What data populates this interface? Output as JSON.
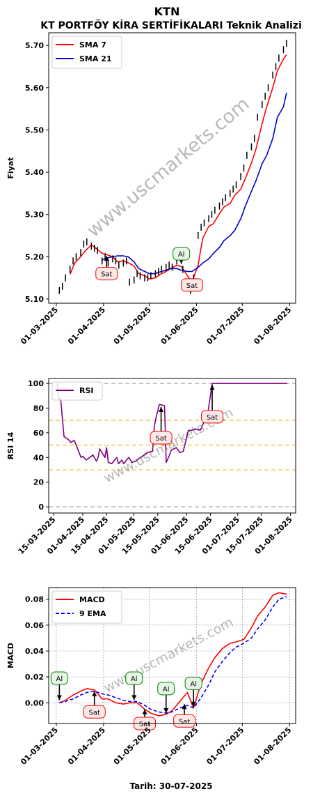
{
  "header": {
    "title": "KTN",
    "subtitle": "KT PORTFÖY KİRA SERTİFİKALARI Teknik Analizi"
  },
  "watermark": "www.uscmarkets.com",
  "footer": {
    "date_label": "Tarih: 30-07-2025"
  },
  "colors": {
    "price": "#000000",
    "sma7": "#ff0000",
    "sma21": "#0000cc",
    "rsi": "#800080",
    "macd": "#ff0000",
    "ema9": "#0000ff",
    "band_gray": "#999999",
    "band_orange": "#f0b000",
    "buy_border": "#008000",
    "buy_fill": "#e6f5e6",
    "sell_border": "#ff0000",
    "sell_fill": "#fde8e8"
  },
  "chart_data": [
    {
      "id": "price",
      "type": "line",
      "ylabel": "Fiyat",
      "ylim": [
        5.09,
        5.73
      ],
      "yticks": [
        5.1,
        5.2,
        5.3,
        5.4,
        5.5,
        5.6,
        5.7
      ],
      "ytick_labels": [
        "5.10",
        "5.20",
        "5.30",
        "5.40",
        "5.50",
        "5.60",
        "5.70"
      ],
      "xlim": [
        "2025-02-24",
        "2025-08-05"
      ],
      "xticks": [
        "2025-03-01",
        "2025-04-01",
        "2025-05-01",
        "2025-06-01",
        "2025-07-01",
        "2025-08-01"
      ],
      "xtick_labels": [
        "01-03-2025",
        "01-04-2025",
        "01-05-2025",
        "01-06-2025",
        "01-07-2025",
        "01-08-2025"
      ],
      "legend": {
        "position": "top-left",
        "entries": [
          "SMA 7",
          "SMA 21"
        ]
      },
      "series": [
        {
          "name": "SMA 7",
          "x": [
            "2025-03-10",
            "2025-03-13",
            "2025-03-17",
            "2025-03-20",
            "2025-03-24",
            "2025-03-27",
            "2025-03-31",
            "2025-04-03",
            "2025-04-07",
            "2025-04-10",
            "2025-04-14",
            "2025-04-17",
            "2025-04-21",
            "2025-04-24",
            "2025-04-28",
            "2025-05-01",
            "2025-05-05",
            "2025-05-08",
            "2025-05-12",
            "2025-05-15",
            "2025-05-19",
            "2025-05-22",
            "2025-05-26",
            "2025-05-29",
            "2025-06-02",
            "2025-06-05",
            "2025-06-09",
            "2025-06-12",
            "2025-06-16",
            "2025-06-19",
            "2025-06-23",
            "2025-06-26",
            "2025-06-30",
            "2025-07-03",
            "2025-07-07",
            "2025-07-10",
            "2025-07-14",
            "2025-07-17",
            "2025-07-21",
            "2025-07-24",
            "2025-07-28",
            "2025-07-30"
          ],
          "values": [
            5.158,
            5.185,
            5.2,
            5.214,
            5.228,
            5.22,
            5.208,
            5.205,
            5.2,
            5.188,
            5.19,
            5.186,
            5.178,
            5.16,
            5.155,
            5.147,
            5.15,
            5.158,
            5.165,
            5.172,
            5.18,
            5.177,
            5.155,
            5.14,
            5.18,
            5.243,
            5.272,
            5.278,
            5.302,
            5.318,
            5.326,
            5.345,
            5.36,
            5.385,
            5.422,
            5.455,
            5.515,
            5.555,
            5.6,
            5.64,
            5.668,
            5.678
          ]
        },
        {
          "name": "SMA 21",
          "x": [
            "2025-03-31",
            "2025-04-03",
            "2025-04-07",
            "2025-04-10",
            "2025-04-14",
            "2025-04-17",
            "2025-04-21",
            "2025-04-24",
            "2025-04-28",
            "2025-05-01",
            "2025-05-05",
            "2025-05-08",
            "2025-05-12",
            "2025-05-15",
            "2025-05-19",
            "2025-05-22",
            "2025-05-26",
            "2025-05-29",
            "2025-06-02",
            "2025-06-05",
            "2025-06-09",
            "2025-06-12",
            "2025-06-16",
            "2025-06-19",
            "2025-06-23",
            "2025-06-26",
            "2025-06-30",
            "2025-07-03",
            "2025-07-07",
            "2025-07-10",
            "2025-07-14",
            "2025-07-17",
            "2025-07-21",
            "2025-07-24",
            "2025-07-28",
            "2025-07-30"
          ],
          "values": [
            5.192,
            5.197,
            5.2,
            5.202,
            5.202,
            5.2,
            5.188,
            5.172,
            5.165,
            5.16,
            5.16,
            5.164,
            5.168,
            5.172,
            5.172,
            5.168,
            5.165,
            5.165,
            5.175,
            5.185,
            5.195,
            5.208,
            5.222,
            5.238,
            5.25,
            5.262,
            5.29,
            5.32,
            5.355,
            5.38,
            5.42,
            5.44,
            5.48,
            5.53,
            5.555,
            5.588
          ]
        },
        {
          "name": "Fiyat",
          "x": [
            "2025-03-03",
            "2025-03-05",
            "2025-03-07",
            "2025-03-10",
            "2025-03-12",
            "2025-03-14",
            "2025-03-17",
            "2025-03-19",
            "2025-03-21",
            "2025-03-24",
            "2025-03-26",
            "2025-03-28",
            "2025-03-31",
            "2025-04-02",
            "2025-04-04",
            "2025-04-07",
            "2025-04-09",
            "2025-04-11",
            "2025-04-14",
            "2025-04-16",
            "2025-04-18",
            "2025-04-21",
            "2025-04-23",
            "2025-04-25",
            "2025-04-28",
            "2025-04-30",
            "2025-05-02",
            "2025-05-05",
            "2025-05-07",
            "2025-05-09",
            "2025-05-12",
            "2025-05-14",
            "2025-05-16",
            "2025-05-19",
            "2025-05-21",
            "2025-05-23",
            "2025-05-26",
            "2025-05-28",
            "2025-05-30",
            "2025-06-02",
            "2025-06-04",
            "2025-06-06",
            "2025-06-09",
            "2025-06-11",
            "2025-06-13",
            "2025-06-16",
            "2025-06-18",
            "2025-06-20",
            "2025-06-23",
            "2025-06-25",
            "2025-06-27",
            "2025-06-30",
            "2025-07-02",
            "2025-07-04",
            "2025-07-07",
            "2025-07-09",
            "2025-07-11",
            "2025-07-14",
            "2025-07-16",
            "2025-07-18",
            "2025-07-21",
            "2025-07-23",
            "2025-07-25",
            "2025-07-28",
            "2025-07-30"
          ],
          "values": [
            5.12,
            5.13,
            5.15,
            5.17,
            5.19,
            5.2,
            5.21,
            5.23,
            5.235,
            5.225,
            5.22,
            5.215,
            5.19,
            5.2,
            5.185,
            5.195,
            5.19,
            5.18,
            5.185,
            5.19,
            5.14,
            5.145,
            5.16,
            5.155,
            5.15,
            5.15,
            5.155,
            5.16,
            5.165,
            5.17,
            5.175,
            5.18,
            5.175,
            5.19,
            5.2,
            5.17,
            5.13,
            5.12,
            5.15,
            5.25,
            5.27,
            5.28,
            5.29,
            5.3,
            5.31,
            5.32,
            5.33,
            5.34,
            5.35,
            5.36,
            5.37,
            5.39,
            5.41,
            5.44,
            5.46,
            5.48,
            5.53,
            5.56,
            5.58,
            5.6,
            5.63,
            5.65,
            5.67,
            5.69,
            5.705
          ]
        }
      ],
      "annotations": [
        {
          "text": "Sat",
          "kind": "sell",
          "date": "2025-04-03",
          "value": 5.205,
          "label_value": 5.16
        },
        {
          "text": "Al",
          "kind": "buy",
          "date": "2025-05-22",
          "value": 5.18,
          "label_value": 5.207
        },
        {
          "text": "Sat",
          "kind": "sell",
          "date": "2025-05-29",
          "value": 5.152,
          "label_value": 5.133
        }
      ]
    },
    {
      "id": "rsi",
      "type": "line",
      "ylabel": "RSI 14",
      "ylim": [
        -5,
        104
      ],
      "yticks": [
        0,
        20,
        40,
        60,
        80,
        100
      ],
      "ytick_labels": [
        "0",
        "20",
        "40",
        "60",
        "80",
        "100"
      ],
      "hlines": [
        {
          "value": 0,
          "style": "gray"
        },
        {
          "value": 30,
          "style": "orange"
        },
        {
          "value": 50,
          "style": "orange"
        },
        {
          "value": 70,
          "style": "orange"
        },
        {
          "value": 100,
          "style": "gray"
        }
      ],
      "xlim": [
        "2025-03-12",
        "2025-08-04"
      ],
      "xticks": [
        "2025-03-15",
        "2025-04-01",
        "2025-04-15",
        "2025-05-01",
        "2025-05-15",
        "2025-06-01",
        "2025-06-15",
        "2025-07-01",
        "2025-07-15",
        "2025-08-01"
      ],
      "xtick_labels": [
        "15-03-2025",
        "01-04-2025",
        "15-04-2025",
        "01-05-2025",
        "15-05-2025",
        "01-06-2025",
        "15-06-2025",
        "01-07-2025",
        "15-07-2025",
        "01-08-2025"
      ],
      "legend": {
        "position": "top-left",
        "entries": [
          "RSI"
        ]
      },
      "series": [
        {
          "name": "RSI",
          "x": [
            "2025-03-17",
            "2025-03-18",
            "2025-03-19",
            "2025-03-21",
            "2025-03-24",
            "2025-03-25",
            "2025-03-27",
            "2025-03-31",
            "2025-04-01",
            "2025-04-03",
            "2025-04-07",
            "2025-04-09",
            "2025-04-10",
            "2025-04-11",
            "2025-04-14",
            "2025-04-15",
            "2025-04-16",
            "2025-04-18",
            "2025-04-21",
            "2025-04-22",
            "2025-04-24",
            "2025-04-25",
            "2025-04-28",
            "2025-04-30",
            "2025-05-02",
            "2025-05-05",
            "2025-05-07",
            "2025-05-09",
            "2025-05-12",
            "2025-05-13",
            "2025-05-14",
            "2025-05-16",
            "2025-05-19",
            "2025-05-20",
            "2025-05-22",
            "2025-05-23",
            "2025-05-26",
            "2025-05-28",
            "2025-05-30",
            "2025-06-02",
            "2025-06-04",
            "2025-06-06",
            "2025-06-09",
            "2025-06-11",
            "2025-06-13",
            "2025-06-16",
            "2025-06-20",
            "2025-06-27",
            "2025-07-04",
            "2025-07-11",
            "2025-07-18",
            "2025-07-25",
            "2025-07-30"
          ],
          "values": [
            100,
            87,
            88,
            57,
            54,
            52,
            54,
            40,
            41,
            38,
            42,
            37,
            40,
            47,
            40,
            48,
            36,
            35,
            40,
            35,
            38,
            35,
            40,
            36,
            37,
            40,
            42,
            44,
            45,
            65,
            72,
            83,
            82,
            36,
            42,
            46,
            48,
            44,
            45,
            62,
            62,
            63,
            62,
            68,
            72,
            100,
            100,
            100,
            100,
            100,
            100,
            100,
            100
          ]
        }
      ],
      "annotations": [
        {
          "text": "Sat",
          "kind": "sell",
          "date": "2025-05-17",
          "value": 82,
          "label_value": 56
        },
        {
          "text": "Sat",
          "kind": "sell",
          "date": "2025-06-16",
          "value": 100,
          "label_value": 73
        }
      ]
    },
    {
      "id": "macd",
      "type": "line",
      "ylabel": "MACD",
      "xlabel": "Tarih: 30-07-2025",
      "ylim": [
        -0.016,
        0.089
      ],
      "yticks": [
        0.0,
        0.02,
        0.04,
        0.06,
        0.08
      ],
      "ytick_labels": [
        "0.00",
        "0.02",
        "0.04",
        "0.06",
        "0.08"
      ],
      "grid": true,
      "xlim": [
        "2025-02-24",
        "2025-08-05"
      ],
      "xticks": [
        "2025-03-01",
        "2025-04-01",
        "2025-05-01",
        "2025-06-01",
        "2025-07-01",
        "2025-08-01"
      ],
      "xtick_labels": [
        "01-03-2025",
        "01-04-2025",
        "01-05-2025",
        "01-06-2025",
        "01-07-2025",
        "01-08-2025"
      ],
      "legend": {
        "position": "top-left",
        "entries": [
          "MACD",
          "9 EMA"
        ]
      },
      "series": [
        {
          "name": "MACD",
          "x": [
            "2025-03-03",
            "2025-03-07",
            "2025-03-12",
            "2025-03-17",
            "2025-03-21",
            "2025-03-26",
            "2025-03-31",
            "2025-04-04",
            "2025-04-09",
            "2025-04-14",
            "2025-04-18",
            "2025-04-23",
            "2025-04-28",
            "2025-05-02",
            "2025-05-07",
            "2025-05-12",
            "2025-05-16",
            "2025-05-21",
            "2025-05-26",
            "2025-05-30",
            "2025-06-04",
            "2025-06-09",
            "2025-06-13",
            "2025-06-18",
            "2025-06-23",
            "2025-06-27",
            "2025-07-02",
            "2025-07-07",
            "2025-07-11",
            "2025-07-16",
            "2025-07-21",
            "2025-07-25",
            "2025-07-30"
          ],
          "values": [
            0.0,
            0.002,
            0.006,
            0.009,
            0.011,
            0.01,
            0.003,
            0.003,
            0.0,
            -0.001,
            0.0,
            0.0,
            -0.005,
            -0.008,
            -0.01,
            -0.009,
            -0.006,
            0.001,
            0.008,
            -0.004,
            0.015,
            0.027,
            0.035,
            0.042,
            0.046,
            0.047,
            0.049,
            0.058,
            0.067,
            0.074,
            0.083,
            0.085,
            0.084
          ]
        },
        {
          "name": "9 EMA",
          "x": [
            "2025-03-03",
            "2025-03-07",
            "2025-03-12",
            "2025-03-17",
            "2025-03-21",
            "2025-03-26",
            "2025-03-31",
            "2025-04-04",
            "2025-04-09",
            "2025-04-14",
            "2025-04-18",
            "2025-04-23",
            "2025-04-28",
            "2025-05-02",
            "2025-05-07",
            "2025-05-12",
            "2025-05-16",
            "2025-05-21",
            "2025-05-26",
            "2025-05-30",
            "2025-06-04",
            "2025-06-09",
            "2025-06-13",
            "2025-06-18",
            "2025-06-23",
            "2025-06-27",
            "2025-07-02",
            "2025-07-07",
            "2025-07-11",
            "2025-07-16",
            "2025-07-21",
            "2025-07-25",
            "2025-07-30"
          ],
          "values": [
            0.0,
            0.001,
            0.003,
            0.006,
            0.008,
            0.009,
            0.007,
            0.006,
            0.004,
            0.002,
            0.001,
            0.001,
            -0.002,
            -0.005,
            -0.007,
            -0.008,
            -0.007,
            -0.004,
            -0.002,
            -0.004,
            0.004,
            0.014,
            0.024,
            0.032,
            0.039,
            0.043,
            0.046,
            0.05,
            0.057,
            0.064,
            0.074,
            0.08,
            0.082
          ]
        }
      ],
      "annotations": [
        {
          "text": "Al",
          "kind": "buy",
          "date": "2025-03-03",
          "value": 0.001,
          "label_value": 0.019
        },
        {
          "text": "Sat",
          "kind": "sell",
          "date": "2025-03-26",
          "value": 0.01,
          "label_value": -0.007
        },
        {
          "text": "Al",
          "kind": "buy",
          "date": "2025-04-21",
          "value": 0.001,
          "label_value": 0.019
        },
        {
          "text": "Sat",
          "kind": "sell",
          "date": "2025-04-28",
          "value": -0.004,
          "label_value": -0.016
        },
        {
          "text": "Al",
          "kind": "buy",
          "date": "2025-05-12",
          "value": -0.009,
          "label_value": 0.011
        },
        {
          "text": "Sat",
          "kind": "sell",
          "date": "2025-05-24",
          "value": 0.0,
          "label_value": -0.014
        },
        {
          "text": "Al",
          "kind": "buy",
          "date": "2025-05-30",
          "value": -0.004,
          "label_value": 0.015
        }
      ]
    }
  ]
}
